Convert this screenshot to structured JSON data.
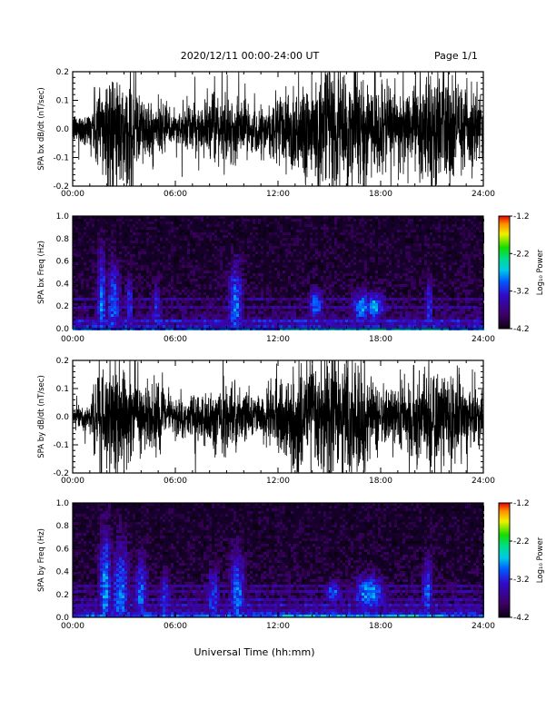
{
  "header": {
    "title": "2020/12/11  00:00-24:00 UT",
    "page": "Page 1/1"
  },
  "xlabel": "Universal Time (hh:mm)",
  "chart_data": [
    {
      "type": "line",
      "id": "bx_dbdt",
      "ylabel": "SPA bx dB/dt (nT/sec)",
      "xlim": [
        0,
        24
      ],
      "ylim": [
        -0.2,
        0.2
      ],
      "xticks": [
        "00:00",
        "06:00",
        "12:00",
        "18:00",
        "24:00"
      ],
      "yticks": [
        "-0.2",
        "-0.1",
        "0.0",
        "0.1",
        "0.2"
      ],
      "series": [
        {
          "x": [
            0,
            1,
            1.5,
            2,
            2.5,
            3,
            3.5,
            4,
            5,
            6,
            7,
            8,
            9,
            10,
            11,
            12,
            13,
            14,
            15,
            16,
            17,
            18,
            19,
            20,
            21,
            22,
            23,
            24
          ],
          "amplitude": [
            0.05,
            0.06,
            0.17,
            0.2,
            0.2,
            0.14,
            0.2,
            0.12,
            0.08,
            0.07,
            0.08,
            0.1,
            0.12,
            0.09,
            0.07,
            0.13,
            0.16,
            0.2,
            0.2,
            0.18,
            0.2,
            0.14,
            0.12,
            0.16,
            0.2,
            0.2,
            0.15,
            0.1
          ]
        }
      ]
    },
    {
      "type": "heatmap",
      "id": "bx_freq",
      "ylabel": "SPA bx Freq (Hz)",
      "xlim": [
        0,
        24
      ],
      "ylim": [
        0,
        1.0
      ],
      "xticks": [
        "00:00",
        "06:00",
        "12:00",
        "18:00",
        "24:00"
      ],
      "yticks": [
        "0.0",
        "0.2",
        "0.4",
        "0.6",
        "0.8",
        "1.0"
      ],
      "colorbar": {
        "label": "Log₁₀ Power",
        "ticks": [
          "-1.2",
          "-2.2",
          "-3.2",
          "-4.2"
        ],
        "range": [
          -4.2,
          -1.2
        ]
      },
      "bursts": [
        {
          "t": 1.7,
          "f": 0.25,
          "dt": 0.3,
          "df": 0.5,
          "power": -2.9
        },
        {
          "t": 2.4,
          "f": 0.2,
          "dt": 0.5,
          "df": 0.5,
          "power": -3.0
        },
        {
          "t": 3.3,
          "f": 0.2,
          "dt": 0.3,
          "df": 0.35,
          "power": -3.1
        },
        {
          "t": 4.9,
          "f": 0.15,
          "dt": 0.4,
          "df": 0.35,
          "power": -3.2
        },
        {
          "t": 9.5,
          "f": 0.2,
          "dt": 0.5,
          "df": 0.45,
          "power": -2.9
        },
        {
          "t": 14.2,
          "f": 0.23,
          "dt": 0.5,
          "df": 0.15,
          "power": -2.9
        },
        {
          "t": 16.9,
          "f": 0.2,
          "dt": 0.7,
          "df": 0.15,
          "power": -2.8
        },
        {
          "t": 17.6,
          "f": 0.21,
          "dt": 0.6,
          "df": 0.12,
          "power": -2.7
        },
        {
          "t": 20.8,
          "f": 0.2,
          "dt": 0.3,
          "df": 0.35,
          "power": -3.1
        }
      ],
      "bands": [
        0.08,
        0.14,
        0.2,
        0.27,
        0.31
      ]
    },
    {
      "type": "line",
      "id": "by_dbdt",
      "ylabel": "SPA by dB/dt (nT/sec)",
      "xlim": [
        0,
        24
      ],
      "ylim": [
        -0.2,
        0.2
      ],
      "xticks": [
        "00:00",
        "06:00",
        "12:00",
        "18:00",
        "24:00"
      ],
      "yticks": [
        "-0.2",
        "-0.1",
        "0.0",
        "0.1",
        "0.2"
      ],
      "series": [
        {
          "x": [
            0,
            1,
            1.5,
            2,
            2.5,
            3,
            3.5,
            4,
            5,
            6,
            7,
            8,
            9,
            10,
            11,
            12,
            13,
            14,
            15,
            16,
            17,
            18,
            19,
            20,
            21,
            22,
            23,
            24
          ],
          "amplitude": [
            0.04,
            0.05,
            0.15,
            0.2,
            0.2,
            0.16,
            0.2,
            0.13,
            0.1,
            0.07,
            0.08,
            0.09,
            0.12,
            0.09,
            0.06,
            0.12,
            0.18,
            0.2,
            0.2,
            0.2,
            0.2,
            0.1,
            0.1,
            0.15,
            0.2,
            0.16,
            0.12,
            0.08
          ]
        }
      ]
    },
    {
      "type": "heatmap",
      "id": "by_freq",
      "ylabel": "SPA by Freq (Hz)",
      "xlim": [
        0,
        24
      ],
      "ylim": [
        0,
        1.0
      ],
      "xticks": [
        "00:00",
        "06:00",
        "12:00",
        "18:00",
        "24:00"
      ],
      "yticks": [
        "0.0",
        "0.2",
        "0.4",
        "0.6",
        "0.8",
        "1.0"
      ],
      "colorbar": {
        "label": "Log₁₀ Power",
        "ticks": [
          "-1.2",
          "-2.2",
          "-3.2",
          "-4.2"
        ],
        "range": [
          -4.2,
          -1.2
        ]
      },
      "bursts": [
        {
          "t": 1.9,
          "f": 0.25,
          "dt": 0.4,
          "df": 0.55,
          "power": -2.8
        },
        {
          "t": 2.8,
          "f": 0.2,
          "dt": 0.6,
          "df": 0.5,
          "power": -2.9
        },
        {
          "t": 4.0,
          "f": 0.2,
          "dt": 0.5,
          "df": 0.4,
          "power": -3.0
        },
        {
          "t": 5.4,
          "f": 0.15,
          "dt": 0.4,
          "df": 0.3,
          "power": -3.1
        },
        {
          "t": 8.2,
          "f": 0.15,
          "dt": 0.5,
          "df": 0.35,
          "power": -3.1
        },
        {
          "t": 9.6,
          "f": 0.2,
          "dt": 0.5,
          "df": 0.45,
          "power": -2.9
        },
        {
          "t": 15.2,
          "f": 0.22,
          "dt": 0.6,
          "df": 0.12,
          "power": -3.0
        },
        {
          "t": 17.3,
          "f": 0.2,
          "dt": 0.9,
          "df": 0.16,
          "power": -2.7
        },
        {
          "t": 20.7,
          "f": 0.22,
          "dt": 0.4,
          "df": 0.35,
          "power": -3.0
        }
      ],
      "bands": [
        0.1,
        0.16,
        0.22,
        0.28,
        0.33
      ]
    }
  ]
}
